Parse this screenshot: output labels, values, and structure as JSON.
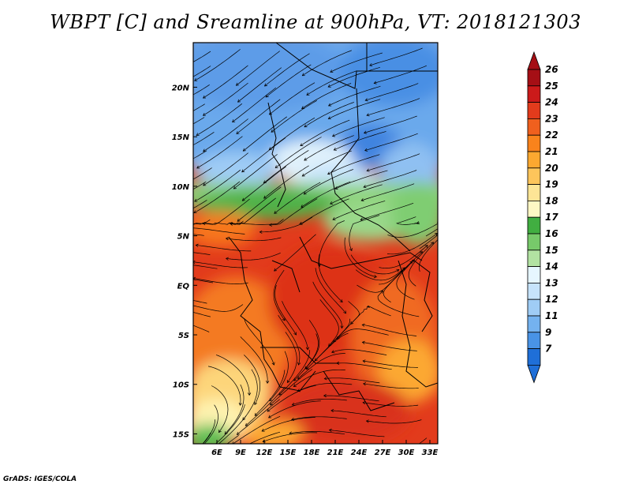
{
  "title": "WBPT [C] and Sreamline at 900hPa, VT: 2018121303",
  "credit": "GrADS: IGES/COLA",
  "map": {
    "lon_range": [
      3,
      34
    ],
    "lat_range": [
      -16,
      24.5
    ],
    "x_ticks": [
      {
        "value": 6,
        "label": "6E"
      },
      {
        "value": 9,
        "label": "9E"
      },
      {
        "value": 12,
        "label": "12E"
      },
      {
        "value": 15,
        "label": "15E"
      },
      {
        "value": 18,
        "label": "18E"
      },
      {
        "value": 21,
        "label": "21E"
      },
      {
        "value": 24,
        "label": "24E"
      },
      {
        "value": 27,
        "label": "27E"
      },
      {
        "value": 30,
        "label": "30E"
      },
      {
        "value": 33,
        "label": "33E"
      }
    ],
    "y_ticks": [
      {
        "value": 20,
        "label": "20N"
      },
      {
        "value": 15,
        "label": "15N"
      },
      {
        "value": 10,
        "label": "10N"
      },
      {
        "value": 5,
        "label": "5N"
      },
      {
        "value": 0,
        "label": "EQ"
      },
      {
        "value": -5,
        "label": "5S"
      },
      {
        "value": -10,
        "label": "10S"
      },
      {
        "value": -15,
        "label": "15S"
      }
    ]
  },
  "colorbar": {
    "labels": [
      "26",
      "25",
      "24",
      "23",
      "22",
      "21",
      "20",
      "19",
      "18",
      "17",
      "16",
      "15",
      "14",
      "13",
      "12",
      "11",
      "9",
      "7"
    ],
    "colors": [
      "#a50f15",
      "#cb1a1a",
      "#e23b1c",
      "#f0601e",
      "#f9831c",
      "#fca830",
      "#fdc55b",
      "#fde596",
      "#fef7c4",
      "#41ae41",
      "#77c96a",
      "#b2e2a2",
      "#e6f6ff",
      "#c6e3fb",
      "#9fccf5",
      "#74b2ef",
      "#4993e6",
      "#1f6fd8"
    ],
    "top_arrow_color": "#a50f15",
    "bottom_arrow_color": "#1f6fd8"
  }
}
